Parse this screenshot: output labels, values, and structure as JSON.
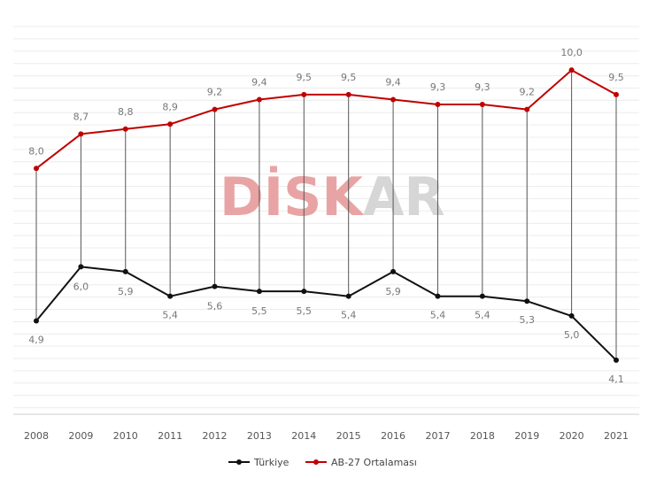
{
  "watermark": {
    "left": "DİSK",
    "right": "AR",
    "left_color": "#e8a4a4",
    "right_color": "#d6d6d6"
  },
  "chart_data": {
    "type": "line",
    "categories": [
      "2008",
      "2009",
      "2010",
      "2011",
      "2012",
      "2013",
      "2014",
      "2015",
      "2016",
      "2017",
      "2018",
      "2019",
      "2020",
      "2021"
    ],
    "series": [
      {
        "name": "Türkiye",
        "color": "#111111",
        "values": [
          4.9,
          6.0,
          5.9,
          5.4,
          5.6,
          5.5,
          5.5,
          5.4,
          5.9,
          5.4,
          5.4,
          5.3,
          5.0,
          4.1
        ],
        "labels": [
          "4,9",
          "6,0",
          "5,9",
          "5,4",
          "5,6",
          "5,5",
          "5,5",
          "5,4",
          "5,9",
          "5,4",
          "5,4",
          "5,3",
          "5,0",
          "4,1"
        ]
      },
      {
        "name": "AB-27 Ortalaması",
        "color": "#c00000",
        "values": [
          8.0,
          8.7,
          8.8,
          8.9,
          9.2,
          9.4,
          9.5,
          9.5,
          9.4,
          9.3,
          9.3,
          9.2,
          10.0,
          9.5
        ],
        "labels": [
          "8,0",
          "8,7",
          "8,8",
          "8,9",
          "9,2",
          "9,4",
          "9,5",
          "9,5",
          "9,4",
          "9,3",
          "9,3",
          "9,2",
          "10,0",
          "9,5"
        ]
      }
    ],
    "ylim": [
      3.0,
      10.5
    ],
    "grid": true,
    "legend_position": "bottom-center",
    "title": "",
    "xlabel": "",
    "ylabel": ""
  }
}
